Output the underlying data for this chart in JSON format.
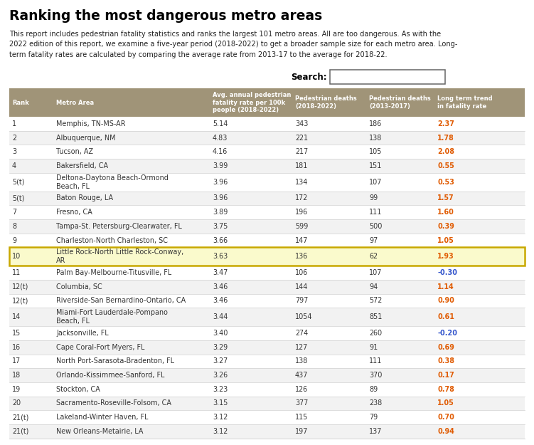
{
  "title": "Ranking the most dangerous metro areas",
  "subtitle": "This report includes pedestrian fatality statistics and ranks the largest 101 metro areas. All are too dangerous. As with the\n2022 edition of this report, we examine a five-year period (2018-2022) to get a broader sample size for each metro area. Long-\nterm fatality rates are calculated by comparing the average rate from 2013-17 to the average for 2018-22.",
  "search_label": "Search:",
  "col_headers": [
    "Rank",
    "Metro Area",
    "Avg. annual pedestrian\nfatality rate per 100k\npeople (2018-2022)",
    "Pedestrian deaths\n(2018-2022)",
    "Pedestrian deaths\n(2013-2017)",
    "Long term trend\nin fatality rate"
  ],
  "rows": [
    {
      "rank": "1",
      "metro": "Memphis, TN-MS-AR",
      "rate": "5.14",
      "deaths1822": "343",
      "deaths1317": "186",
      "trend": "2.37",
      "trend_color": "red",
      "highlight": false
    },
    {
      "rank": "2",
      "metro": "Albuquerque, NM",
      "rate": "4.83",
      "deaths1822": "221",
      "deaths1317": "138",
      "trend": "1.78",
      "trend_color": "red",
      "highlight": false
    },
    {
      "rank": "3",
      "metro": "Tucson, AZ",
      "rate": "4.16",
      "deaths1822": "217",
      "deaths1317": "105",
      "trend": "2.08",
      "trend_color": "red",
      "highlight": false
    },
    {
      "rank": "4",
      "metro": "Bakersfield, CA",
      "rate": "3.99",
      "deaths1822": "181",
      "deaths1317": "151",
      "trend": "0.55",
      "trend_color": "red",
      "highlight": false
    },
    {
      "rank": "5(t)",
      "metro": "Deltona-Daytona Beach-Ormond\nBeach, FL",
      "rate": "3.96",
      "deaths1822": "134",
      "deaths1317": "107",
      "trend": "0.53",
      "trend_color": "red",
      "highlight": false
    },
    {
      "rank": "5(t)",
      "metro": "Baton Rouge, LA",
      "rate": "3.96",
      "deaths1822": "172",
      "deaths1317": "99",
      "trend": "1.57",
      "trend_color": "red",
      "highlight": false
    },
    {
      "rank": "7",
      "metro": "Fresno, CA",
      "rate": "3.89",
      "deaths1822": "196",
      "deaths1317": "111",
      "trend": "1.60",
      "trend_color": "red",
      "highlight": false
    },
    {
      "rank": "8",
      "metro": "Tampa-St. Petersburg-Clearwater, FL",
      "rate": "3.75",
      "deaths1822": "599",
      "deaths1317": "500",
      "trend": "0.39",
      "trend_color": "red",
      "highlight": false
    },
    {
      "rank": "9",
      "metro": "Charleston-North Charleston, SC",
      "rate": "3.66",
      "deaths1822": "147",
      "deaths1317": "97",
      "trend": "1.05",
      "trend_color": "red",
      "highlight": false
    },
    {
      "rank": "10",
      "metro": "Little Rock-North Little Rock-Conway,\nAR",
      "rate": "3.63",
      "deaths1822": "136",
      "deaths1317": "62",
      "trend": "1.93",
      "trend_color": "red",
      "highlight": true
    },
    {
      "rank": "11",
      "metro": "Palm Bay-Melbourne-Titusville, FL",
      "rate": "3.47",
      "deaths1822": "106",
      "deaths1317": "107",
      "trend": "-0.30",
      "trend_color": "blue",
      "highlight": false
    },
    {
      "rank": "12(t)",
      "metro": "Columbia, SC",
      "rate": "3.46",
      "deaths1822": "144",
      "deaths1317": "94",
      "trend": "1.14",
      "trend_color": "red",
      "highlight": false
    },
    {
      "rank": "12(t)",
      "metro": "Riverside-San Bernardino-Ontario, CA",
      "rate": "3.46",
      "deaths1822": "797",
      "deaths1317": "572",
      "trend": "0.90",
      "trend_color": "red",
      "highlight": false
    },
    {
      "rank": "14",
      "metro": "Miami-Fort Lauderdale-Pompano\nBeach, FL",
      "rate": "3.44",
      "deaths1822": "1054",
      "deaths1317": "851",
      "trend": "0.61",
      "trend_color": "red",
      "highlight": false
    },
    {
      "rank": "15",
      "metro": "Jacksonville, FL",
      "rate": "3.40",
      "deaths1822": "274",
      "deaths1317": "260",
      "trend": "-0.20",
      "trend_color": "blue",
      "highlight": false
    },
    {
      "rank": "16",
      "metro": "Cape Coral-Fort Myers, FL",
      "rate": "3.29",
      "deaths1822": "127",
      "deaths1317": "91",
      "trend": "0.69",
      "trend_color": "red",
      "highlight": false
    },
    {
      "rank": "17",
      "metro": "North Port-Sarasota-Bradenton, FL",
      "rate": "3.27",
      "deaths1822": "138",
      "deaths1317": "111",
      "trend": "0.38",
      "trend_color": "red",
      "highlight": false
    },
    {
      "rank": "18",
      "metro": "Orlando-Kissimmee-Sanford, FL",
      "rate": "3.26",
      "deaths1822": "437",
      "deaths1317": "370",
      "trend": "0.17",
      "trend_color": "red",
      "highlight": false
    },
    {
      "rank": "19",
      "metro": "Stockton, CA",
      "rate": "3.23",
      "deaths1822": "126",
      "deaths1317": "89",
      "trend": "0.78",
      "trend_color": "red",
      "highlight": false
    },
    {
      "rank": "20",
      "metro": "Sacramento-Roseville-Folsom, CA",
      "rate": "3.15",
      "deaths1822": "377",
      "deaths1317": "238",
      "trend": "1.05",
      "trend_color": "red",
      "highlight": false
    },
    {
      "rank": "21(t)",
      "metro": "Lakeland-Winter Haven, FL",
      "rate": "3.12",
      "deaths1822": "115",
      "deaths1317": "79",
      "trend": "0.70",
      "trend_color": "red",
      "highlight": false
    },
    {
      "rank": "21(t)",
      "metro": "New Orleans-Metairie, LA",
      "rate": "3.12",
      "deaths1822": "197",
      "deaths1317": "137",
      "trend": "0.94",
      "trend_color": "red",
      "highlight": false
    }
  ],
  "header_bg": "#a09478",
  "header_text_color": "#ffffff",
  "row_bg_odd": "#ffffff",
  "row_bg_even": "#f2f2f2",
  "highlight_bg": "#fafacc",
  "highlight_border": "#c8a800",
  "title_color": "#000000",
  "body_text_color": "#333333",
  "red_color": "#e05a00",
  "blue_color": "#3355cc",
  "search_box_color": "#000000",
  "fig_width": 7.51,
  "fig_height": 6.25,
  "dpi": 100
}
